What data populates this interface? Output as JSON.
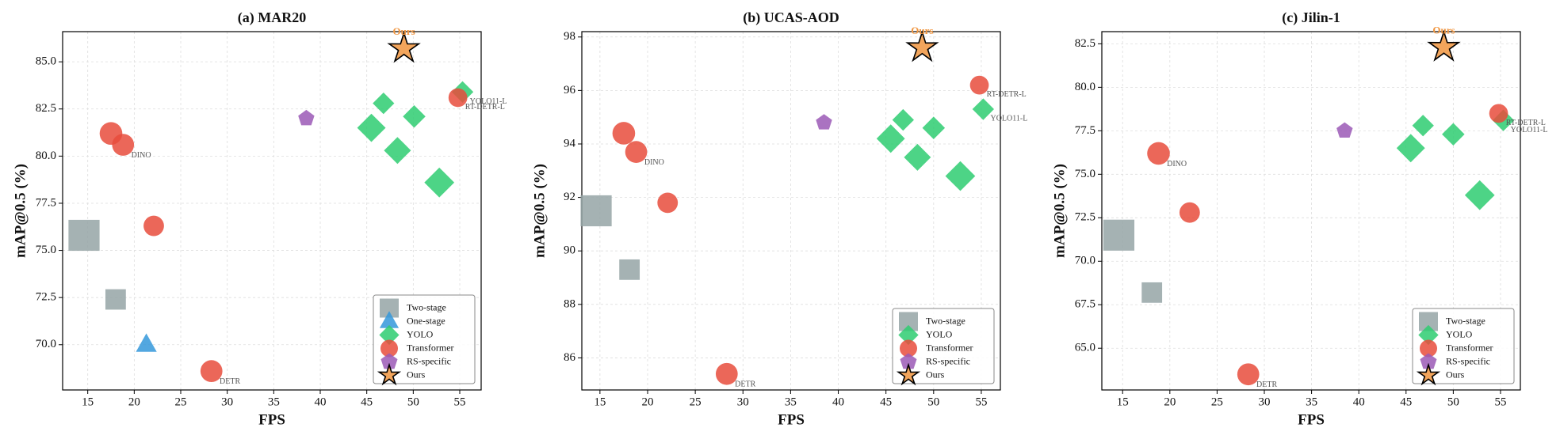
{
  "chart_data": [
    {
      "type": "scatter",
      "title": "(a) MAR20",
      "x_label": "FPS",
      "y_label": "mAP@0.5 (%)",
      "xlim": [
        12.3,
        57.3
      ],
      "ylim": [
        67.6,
        86.6
      ],
      "xticks": [
        15,
        20,
        25,
        30,
        35,
        40,
        45,
        50,
        55
      ],
      "yticks": [
        {
          "value": 70,
          "label": "70.0"
        },
        {
          "value": 72.5,
          "label": "72.5"
        },
        {
          "value": 75,
          "label": "75.0"
        },
        {
          "value": 77.5,
          "label": "77.5"
        },
        {
          "value": 80,
          "label": "80.0"
        },
        {
          "value": 82.5,
          "label": "82.5"
        },
        {
          "value": 85,
          "label": "85.0"
        }
      ],
      "grid": true,
      "legend": "lower right",
      "series": [
        {
          "name": "Two-stage",
          "color": "#95a5a6",
          "marker": "square",
          "x": [
            14.6,
            18.0
          ],
          "values": [
            75.8,
            72.4
          ],
          "sizes": [
            600,
            260
          ],
          "labels": [
            null,
            null
          ]
        },
        {
          "name": "One-stage",
          "color": "#3498db",
          "marker": "triangle",
          "x": [
            21.3
          ],
          "values": [
            70.0
          ],
          "sizes": [
            220
          ],
          "labels": [
            null
          ]
        },
        {
          "name": "YOLO",
          "color": "#2ecc71",
          "marker": "diamond",
          "x": [
            46.8,
            50.1,
            45.5,
            48.3,
            52.8,
            55.3
          ],
          "values": [
            82.8,
            82.1,
            81.5,
            80.3,
            78.6,
            83.4
          ],
          "sizes": [
            220,
            240,
            380,
            340,
            420,
            220
          ],
          "labels": [
            null,
            null,
            null,
            null,
            null,
            "YOLO11-L"
          ]
        },
        {
          "name": "Transformer",
          "color": "#e74c3c",
          "marker": "circle",
          "x": [
            17.5,
            18.8,
            22.1,
            28.3,
            54.8
          ],
          "values": [
            81.2,
            80.6,
            76.3,
            68.6,
            83.1
          ],
          "sizes": [
            320,
            300,
            260,
            300,
            220
          ],
          "labels": [
            null,
            "DINO",
            null,
            "DETR",
            "RT-DETR-L"
          ]
        },
        {
          "name": "RS-specific",
          "color": "#9b59b6",
          "marker": "pentagon",
          "x": [
            38.5
          ],
          "values": [
            82.0
          ],
          "sizes": [
            180
          ],
          "labels": [
            null
          ]
        },
        {
          "name": "Ours",
          "color": "#f0953f",
          "edgecolor": "#000000",
          "marker": "star",
          "x": [
            49.0
          ],
          "values": [
            85.7
          ],
          "sizes": [
            420
          ],
          "labels": [
            "Ours"
          ]
        }
      ]
    },
    {
      "type": "scatter",
      "title": "(b) UCAS-AOD",
      "x_label": "FPS",
      "y_label": "mAP@0.5 (%)",
      "xlim": [
        13.1,
        57.0
      ],
      "ylim": [
        84.8,
        98.2
      ],
      "xticks": [
        15,
        20,
        25,
        30,
        35,
        40,
        45,
        50,
        55
      ],
      "yticks": [
        86,
        88,
        90,
        92,
        94,
        96,
        98
      ],
      "grid": true,
      "legend": "lower right",
      "series": [
        {
          "name": "Two-stage",
          "color": "#95a5a6",
          "marker": "square",
          "x": [
            14.6,
            18.1
          ],
          "values": [
            91.5,
            89.3
          ],
          "sizes": [
            600,
            260
          ],
          "labels": [
            null,
            null
          ]
        },
        {
          "name": "YOLO",
          "color": "#2ecc71",
          "marker": "diamond",
          "x": [
            46.8,
            50.0,
            45.5,
            48.3,
            52.8,
            55.2
          ],
          "values": [
            94.9,
            94.6,
            94.2,
            93.5,
            92.8,
            95.3
          ],
          "sizes": [
            220,
            240,
            380,
            340,
            420,
            220
          ],
          "labels": [
            null,
            null,
            null,
            null,
            null,
            "YOLO11-L"
          ]
        },
        {
          "name": "Transformer",
          "color": "#e74c3c",
          "marker": "circle",
          "x": [
            17.5,
            18.8,
            22.1,
            28.3,
            54.8
          ],
          "values": [
            94.4,
            93.7,
            91.8,
            85.4,
            96.2
          ],
          "sizes": [
            320,
            300,
            260,
            300,
            220
          ],
          "labels": [
            null,
            "DINO",
            null,
            "DETR",
            "RT-DETR-L"
          ]
        },
        {
          "name": "RS-specific",
          "color": "#9b59b6",
          "marker": "pentagon",
          "x": [
            38.5
          ],
          "values": [
            94.8
          ],
          "sizes": [
            180
          ],
          "labels": [
            null
          ]
        },
        {
          "name": "Ours",
          "color": "#f0953f",
          "edgecolor": "#000000",
          "marker": "star",
          "x": [
            48.8
          ],
          "values": [
            97.6
          ],
          "sizes": [
            420
          ],
          "labels": [
            "Ours"
          ]
        }
      ]
    },
    {
      "type": "scatter",
      "title": "(c) Jilin-1",
      "x_label": "FPS",
      "y_label": "mAP@0.5 (%)",
      "xlim": [
        12.8,
        57.1
      ],
      "ylim": [
        62.6,
        83.2
      ],
      "xticks": [
        15,
        20,
        25,
        30,
        35,
        40,
        45,
        50,
        55
      ],
      "yticks": [
        {
          "value": 65,
          "label": "65.0"
        },
        {
          "value": 67.5,
          "label": "67.5"
        },
        {
          "value": 70,
          "label": "70.0"
        },
        {
          "value": 72.5,
          "label": "72.5"
        },
        {
          "value": 75,
          "label": "75.0"
        },
        {
          "value": 77.5,
          "label": "77.5"
        },
        {
          "value": 80,
          "label": "80.0"
        },
        {
          "value": 82.5,
          "label": "82.5"
        }
      ],
      "grid": true,
      "legend": "lower right",
      "series": [
        {
          "name": "Two-stage",
          "color": "#95a5a6",
          "marker": "square",
          "x": [
            14.6,
            18.1
          ],
          "values": [
            71.5,
            68.2
          ],
          "sizes": [
            600,
            260
          ],
          "labels": [
            null,
            null
          ]
        },
        {
          "name": "YOLO",
          "color": "#2ecc71",
          "marker": "diamond",
          "x": [
            46.8,
            50.0,
            45.5,
            52.8,
            55.3
          ],
          "values": [
            77.8,
            77.3,
            76.5,
            73.8,
            78.1
          ],
          "sizes": [
            220,
            240,
            380,
            420,
            220
          ],
          "labels": [
            null,
            null,
            null,
            null,
            "YOLO11-L"
          ]
        },
        {
          "name": "Transformer",
          "color": "#e74c3c",
          "marker": "circle",
          "x": [
            18.8,
            22.1,
            28.3,
            54.8
          ],
          "values": [
            76.2,
            72.8,
            63.5,
            78.5
          ],
          "sizes": [
            320,
            260,
            300,
            220
          ],
          "labels": [
            "DINO",
            null,
            "DETR",
            "RT-DETR-L"
          ]
        },
        {
          "name": "RS-specific",
          "color": "#9b59b6",
          "marker": "pentagon",
          "x": [
            38.5
          ],
          "values": [
            77.5
          ],
          "sizes": [
            180
          ],
          "labels": [
            null
          ]
        },
        {
          "name": "Ours",
          "color": "#f0953f",
          "edgecolor": "#000000",
          "marker": "star",
          "x": [
            49.0
          ],
          "values": [
            82.3
          ],
          "sizes": [
            420
          ],
          "labels": [
            "Ours"
          ]
        }
      ]
    }
  ]
}
